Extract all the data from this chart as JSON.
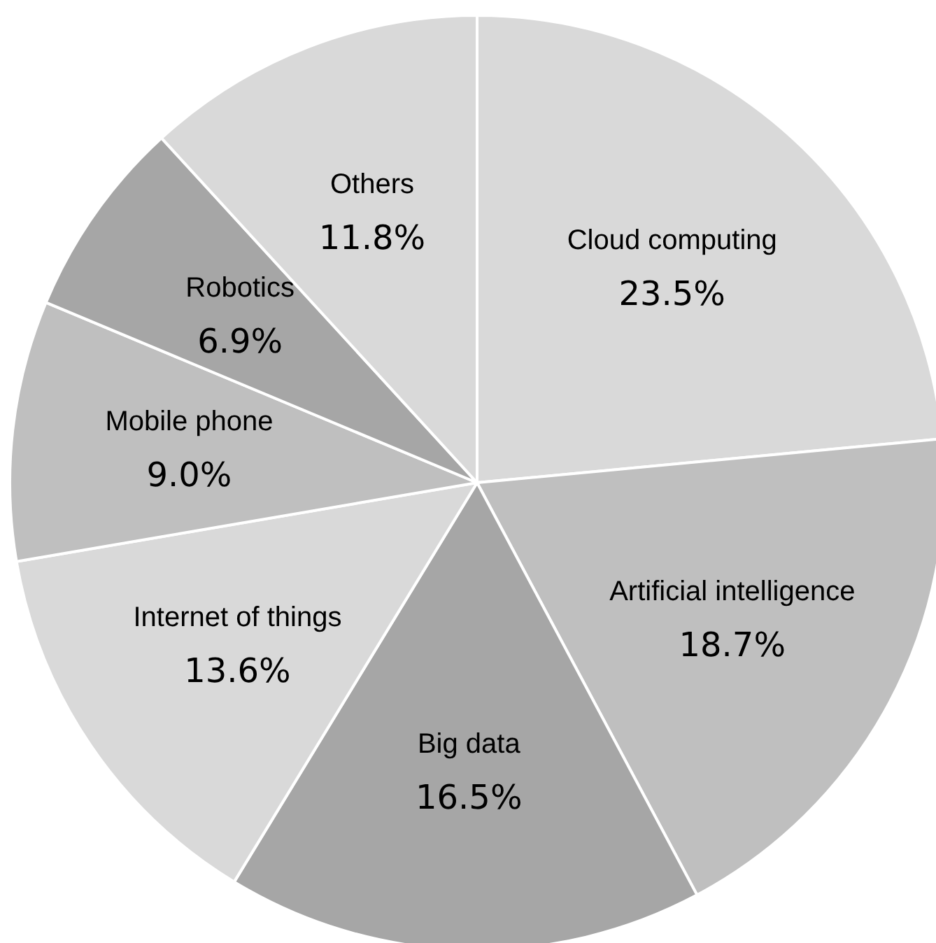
{
  "chart_data": {
    "type": "pie",
    "categories": [
      "Cloud computing",
      "Artificial intelligence",
      "Big data",
      "Internet of things",
      "Mobile phone",
      "Robotics",
      "Others"
    ],
    "values": [
      23.5,
      18.7,
      16.5,
      13.6,
      9.0,
      6.9,
      11.8
    ],
    "value_labels": [
      "23.5%",
      "18.7%",
      "16.5%",
      "13.6%",
      "9.0%",
      "6.9%",
      "11.8%"
    ],
    "colors": [
      "#d9d9d9",
      "#bfbfbf",
      "#a6a6a6",
      "#d9d9d9",
      "#bfbfbf",
      "#a6a6a6",
      "#d9d9d9"
    ],
    "legend": false
  }
}
